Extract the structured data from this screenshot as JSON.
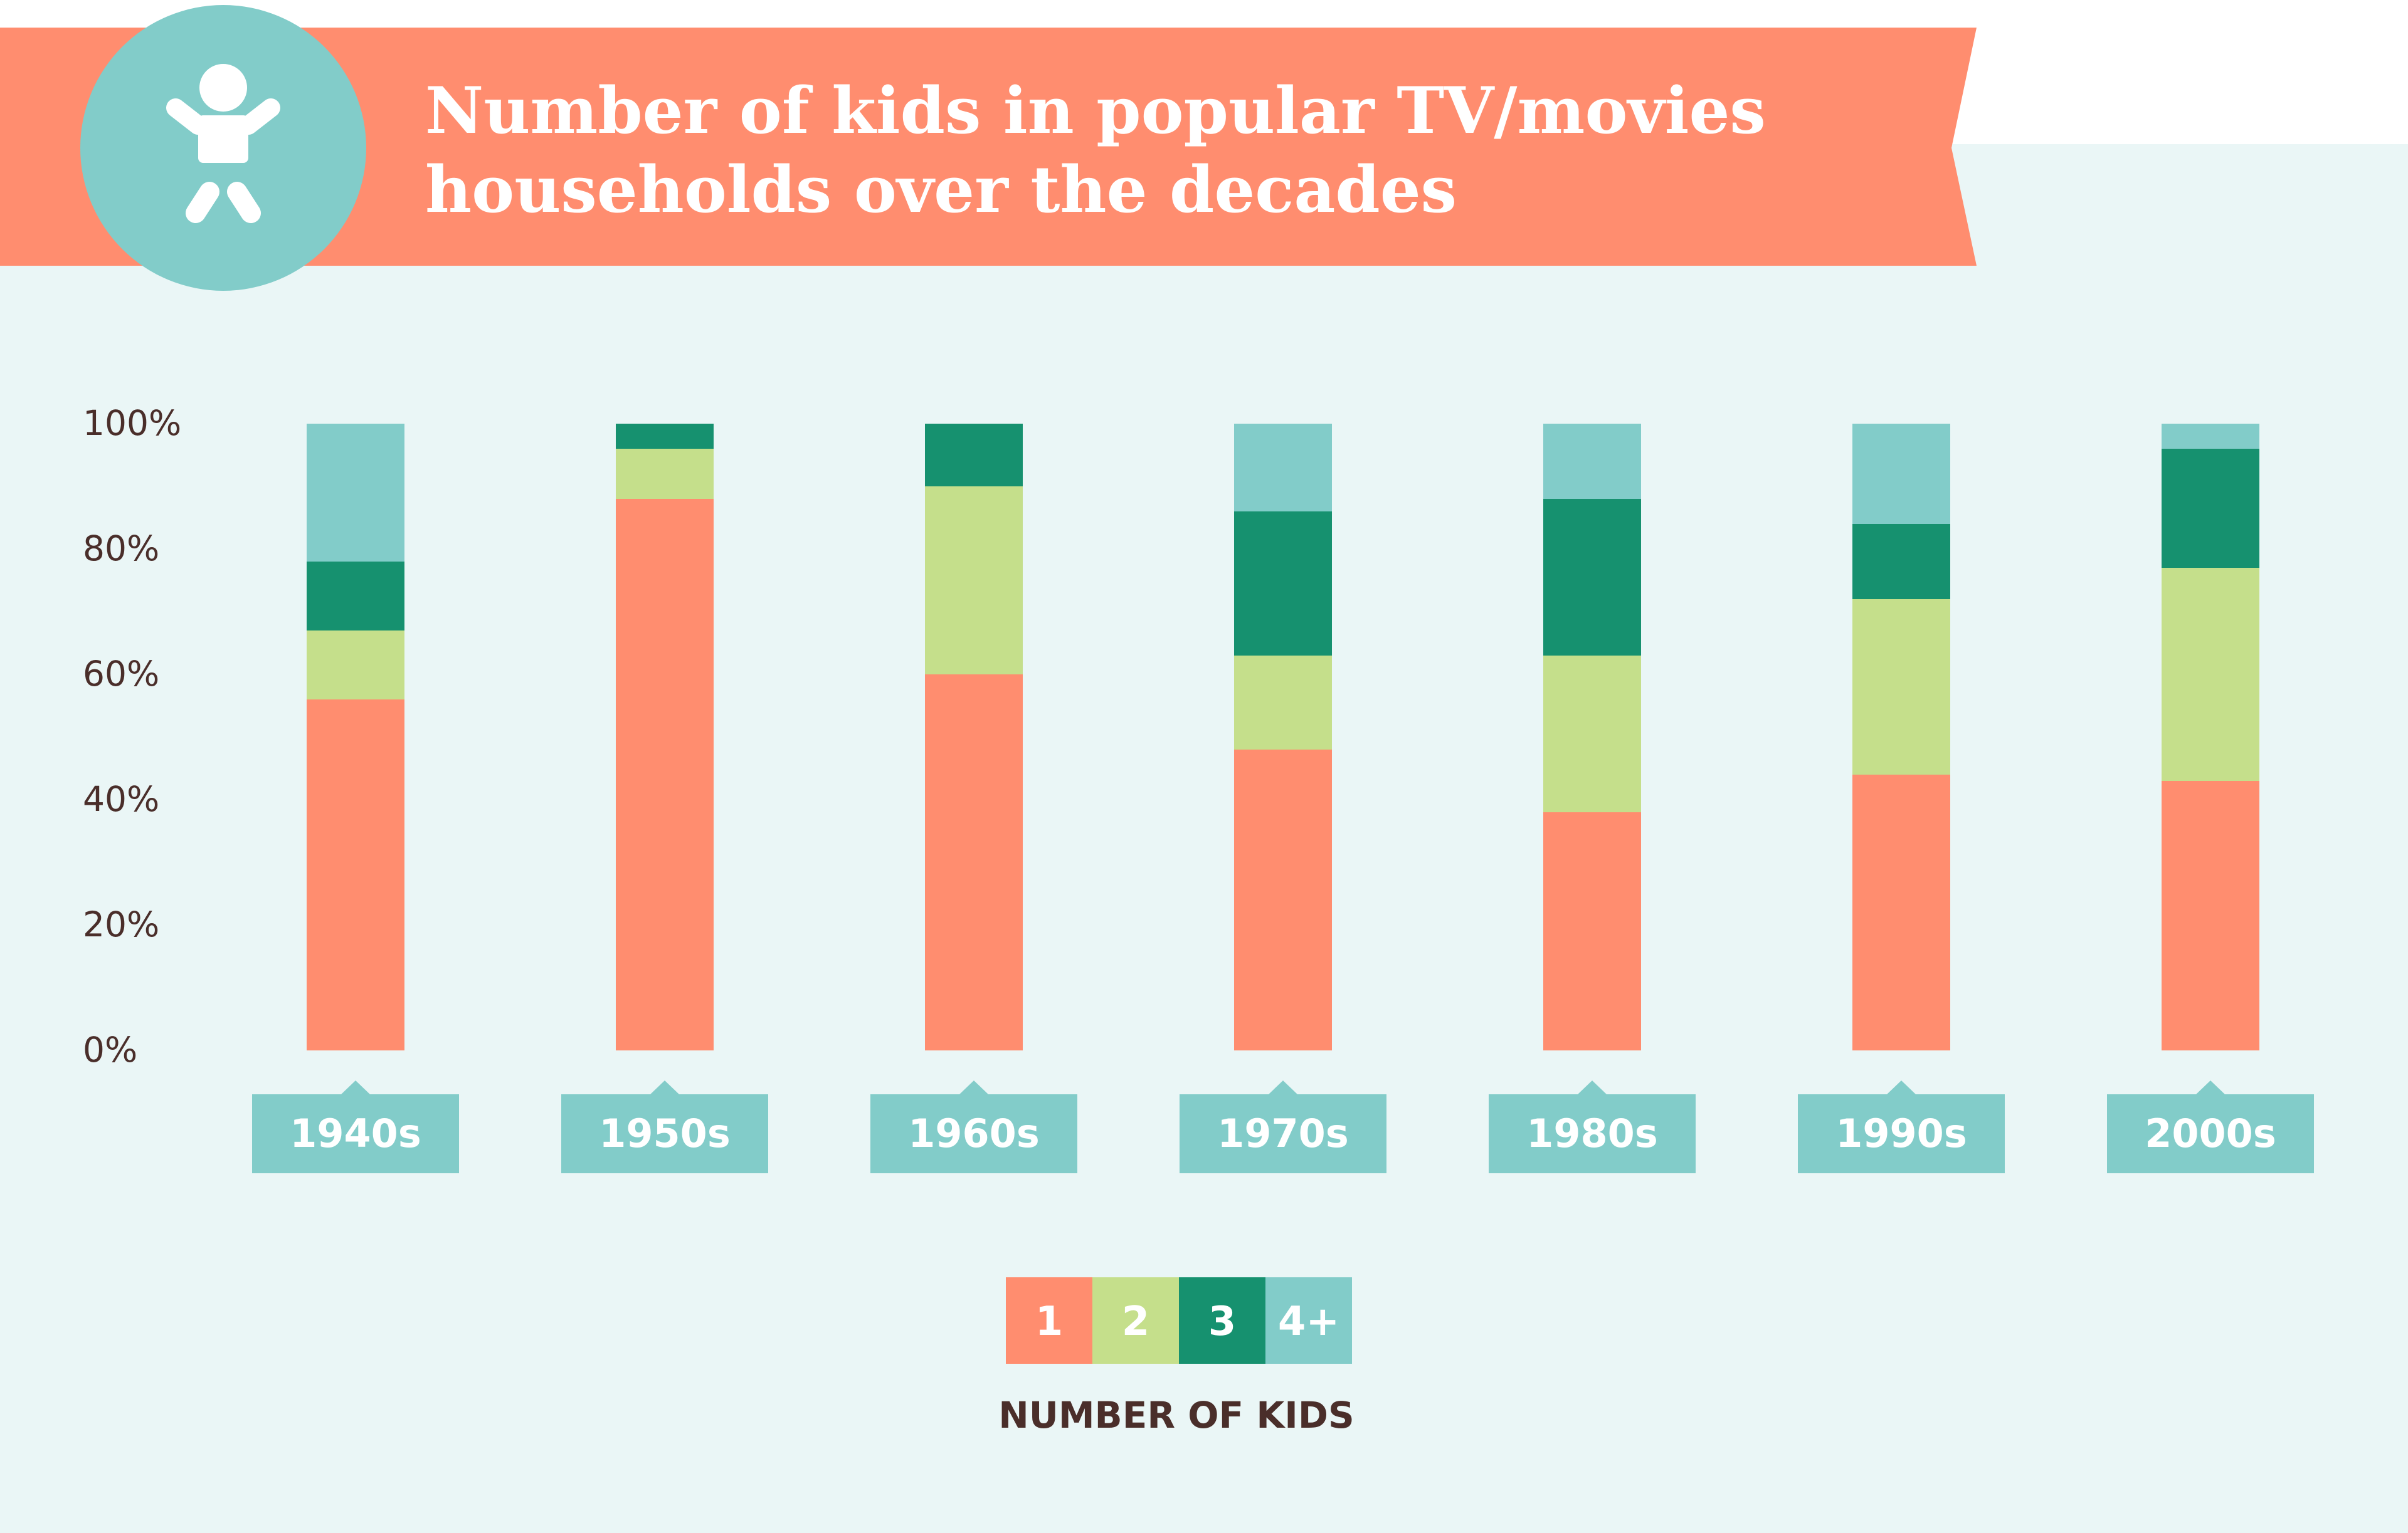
{
  "colors": {
    "background": "#EAF6F6",
    "banner": "#FF8D6F",
    "badge": "#82CCC9",
    "text_dark": "#4A2E2A",
    "white": "#FFFFFF"
  },
  "icon": "baby-icon",
  "chart_data": {
    "type": "bar",
    "stacked": true,
    "title": "Number of kids in popular TV/movies households over the decades",
    "title_lines": [
      "Number of kids in popular TV/movies",
      "households over the decades"
    ],
    "categories": [
      "1940s",
      "1950s",
      "1960s",
      "1970s",
      "1980s",
      "1990s",
      "2000s"
    ],
    "ylim": [
      0,
      100
    ],
    "y_ticks": [
      "0%",
      "20%",
      "40%",
      "60%",
      "80%",
      "100%"
    ],
    "y_tick_values": [
      0,
      20,
      40,
      60,
      80,
      100
    ],
    "grid": false,
    "legend_title": "NUMBER OF KIDS",
    "legend_position": "bottom-center",
    "series": [
      {
        "name": "1",
        "color": "#FF8D6F",
        "values": [
          56,
          88,
          60,
          48,
          38,
          44,
          43
        ]
      },
      {
        "name": "2",
        "color": "#C5DF8B",
        "values": [
          11,
          8,
          30,
          15,
          25,
          28,
          34
        ]
      },
      {
        "name": "3",
        "color": "#16916F",
        "values": [
          11,
          4,
          10,
          23,
          25,
          12,
          19
        ]
      },
      {
        "name": "4+",
        "color": "#82CCC9",
        "values": [
          22,
          0,
          0,
          14,
          12,
          16,
          4
        ]
      }
    ]
  }
}
